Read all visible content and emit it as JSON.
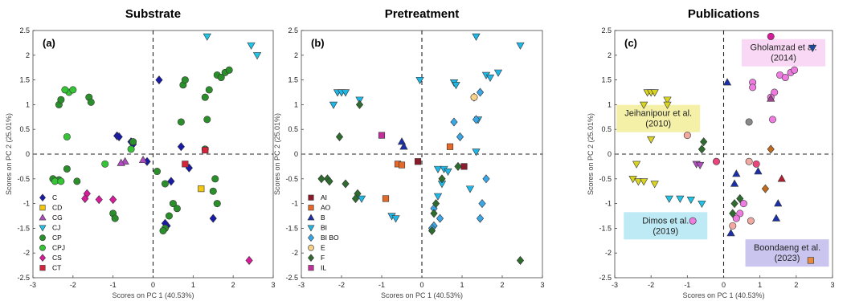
{
  "chart_data": [
    {
      "type": "scatter",
      "title": "Substrate",
      "panel_label": "(a)",
      "xlabel": "Scores on PC 1 (40.53%)",
      "ylabel": "Scores on PC 2 (25.01%)",
      "xlim": [
        -3,
        3
      ],
      "ylim": [
        -2.5,
        2.5
      ],
      "xticks": [
        "-3",
        "-2",
        "-1",
        "0",
        "1",
        "2",
        "3"
      ],
      "yticks": [
        "-2.5",
        "-2",
        "-1.5",
        "-1",
        "-0.5",
        "0",
        "0.5",
        "1",
        "1.5",
        "2",
        "2.5"
      ],
      "legend_position": "bottom-left",
      "series": [
        {
          "name": "C",
          "marker": "diamond",
          "color": "#1a1aa8",
          "points": [
            [
              -0.9,
              0.37
            ],
            [
              -0.85,
              0.35
            ],
            [
              -0.55,
              0.25
            ],
            [
              -0.5,
              0.2
            ],
            [
              0.15,
              1.5
            ],
            [
              0.7,
              0.15
            ],
            [
              -0.15,
              -0.15
            ],
            [
              0.9,
              -0.28
            ],
            [
              0.45,
              -0.55
            ],
            [
              0.35,
              -1.45
            ],
            [
              1.5,
              -1.3
            ],
            [
              0.3,
              -1.4
            ]
          ]
        },
        {
          "name": "CD",
          "marker": "square",
          "color": "#f2c80f",
          "points": [
            [
              1.2,
              -0.7
            ]
          ]
        },
        {
          "name": "CG",
          "marker": "triangle",
          "color": "#b04cc0",
          "points": [
            [
              -0.7,
              -0.15
            ],
            [
              -0.8,
              -0.18
            ],
            [
              -0.25,
              -0.12
            ]
          ]
        },
        {
          "name": "CJ",
          "marker": "triangle-down",
          "color": "#1fc4e6",
          "points": [
            [
              1.35,
              2.38
            ],
            [
              2.45,
              2.2
            ],
            [
              2.6,
              2.0
            ]
          ]
        },
        {
          "name": "CP",
          "marker": "circle",
          "color": "#2a8f2a",
          "points": [
            [
              -2.35,
              1.0
            ],
            [
              -2.3,
              1.1
            ],
            [
              -1.6,
              1.15
            ],
            [
              -1.55,
              1.05
            ],
            [
              0.7,
              0.65
            ],
            [
              0.75,
              1.4
            ],
            [
              0.8,
              1.5
            ],
            [
              1.3,
              1.15
            ],
            [
              1.4,
              1.3
            ],
            [
              1.6,
              1.6
            ],
            [
              1.7,
              1.55
            ],
            [
              1.8,
              1.65
            ],
            [
              1.9,
              1.7
            ],
            [
              1.35,
              0.7
            ],
            [
              1.3,
              0.1
            ],
            [
              -0.5,
              0.25
            ],
            [
              -2.15,
              -0.3
            ],
            [
              -2.5,
              -0.5
            ],
            [
              -2.35,
              -0.52
            ],
            [
              -1.9,
              -0.55
            ],
            [
              -1.0,
              -1.2
            ],
            [
              -0.95,
              -1.3
            ],
            [
              0.1,
              -0.35
            ],
            [
              0.3,
              -0.6
            ],
            [
              0.5,
              -1.0
            ],
            [
              0.6,
              -1.1
            ],
            [
              0.4,
              -1.25
            ],
            [
              0.3,
              -1.5
            ],
            [
              0.25,
              -1.55
            ],
            [
              1.5,
              -0.75
            ],
            [
              1.6,
              -1.0
            ],
            [
              1.55,
              -0.5
            ]
          ]
        },
        {
          "name": "CPJ",
          "marker": "circle",
          "color": "#35c435",
          "points": [
            [
              -2.1,
              1.25
            ],
            [
              -2.2,
              1.3
            ],
            [
              -2.0,
              1.3
            ],
            [
              -2.15,
              0.35
            ],
            [
              -1.2,
              -0.2
            ],
            [
              -0.55,
              0.1
            ],
            [
              -2.45,
              -0.55
            ],
            [
              -2.3,
              -0.55
            ]
          ]
        },
        {
          "name": "CS",
          "marker": "diamond",
          "color": "#d81b9a",
          "points": [
            [
              -1.65,
              -0.8
            ],
            [
              -1.7,
              -0.9
            ],
            [
              -1.35,
              -0.92
            ],
            [
              -1.0,
              -0.92
            ],
            [
              2.4,
              -2.15
            ]
          ]
        },
        {
          "name": "CT",
          "marker": "square",
          "color": "#d3243a",
          "points": [
            [
              0.8,
              -0.2
            ],
            [
              1.3,
              0.08
            ]
          ]
        }
      ]
    },
    {
      "type": "scatter",
      "title": "Pretreatment",
      "panel_label": "(b)",
      "xlabel": "Scores on PC 1 (40.53%)",
      "ylabel": "Scores on PC 2 (25.01%)",
      "xlim": [
        -3,
        3
      ],
      "ylim": [
        -2.5,
        2.5
      ],
      "xticks": [
        "-3",
        "-2",
        "-1",
        "0",
        "1",
        "2",
        "3"
      ],
      "yticks": [
        "-2.5",
        "-2",
        "-1.5",
        "-1",
        "-0.5",
        "0",
        "0.5",
        "1",
        "1.5",
        "2",
        "2.5"
      ],
      "legend_position": "bottom-left",
      "series": [
        {
          "name": "AI",
          "marker": "square",
          "color": "#8b1a2b",
          "points": [
            [
              -0.1,
              -0.15
            ],
            [
              1.05,
              -0.25
            ]
          ]
        },
        {
          "name": "AO",
          "marker": "square",
          "color": "#e36a2a",
          "points": [
            [
              -0.6,
              -0.2
            ],
            [
              -0.5,
              -0.22
            ],
            [
              0.7,
              0.15
            ],
            [
              -0.9,
              -0.9
            ]
          ]
        },
        {
          "name": "B",
          "marker": "triangle",
          "color": "#1a2fa8",
          "points": [
            [
              -0.5,
              0.25
            ],
            [
              -0.45,
              0.15
            ]
          ]
        },
        {
          "name": "BI",
          "marker": "triangle-down",
          "color": "#1fb7e6",
          "points": [
            [
              -2.2,
              1.0
            ],
            [
              -2.1,
              1.25
            ],
            [
              -2.0,
              1.25
            ],
            [
              -1.9,
              1.25
            ],
            [
              -1.55,
              1.1
            ],
            [
              -0.05,
              1.5
            ],
            [
              0.8,
              1.45
            ],
            [
              0.85,
              1.4
            ],
            [
              1.35,
              2.38
            ],
            [
              2.45,
              2.2
            ],
            [
              1.6,
              1.6
            ],
            [
              1.7,
              1.55
            ],
            [
              1.9,
              1.65
            ],
            [
              1.35,
              0.05
            ],
            [
              1.4,
              0.7
            ],
            [
              -1.5,
              -0.9
            ],
            [
              -0.75,
              -1.25
            ],
            [
              -0.65,
              -1.3
            ],
            [
              0.4,
              -0.3
            ],
            [
              0.55,
              -0.3
            ],
            [
              0.65,
              -0.35
            ],
            [
              0.5,
              -0.6
            ],
            [
              0.4,
              -0.85
            ],
            [
              1.2,
              -0.7
            ]
          ]
        },
        {
          "name": "BI BO",
          "marker": "diamond",
          "color": "#3aa6e6",
          "points": [
            [
              0.8,
              0.65
            ],
            [
              0.95,
              0.35
            ],
            [
              1.35,
              0.7
            ],
            [
              1.45,
              1.25
            ],
            [
              1.6,
              -0.5
            ],
            [
              1.5,
              -1.0
            ],
            [
              1.45,
              -1.3
            ],
            [
              0.3,
              -1.45
            ],
            [
              0.45,
              -1.3
            ],
            [
              0.3,
              -1.1
            ],
            [
              0.25,
              -1.5
            ],
            [
              1.3,
              1.15
            ]
          ]
        },
        {
          "name": "E",
          "marker": "circle",
          "color": "#f7d08a",
          "points": [
            [
              1.3,
              1.15
            ]
          ]
        },
        {
          "name": "F",
          "marker": "diamond",
          "color": "#2e6b2e",
          "points": [
            [
              -2.05,
              0.35
            ],
            [
              -1.55,
              1.0
            ],
            [
              -2.35,
              -0.5
            ],
            [
              -2.5,
              -0.5
            ],
            [
              -2.3,
              -0.55
            ],
            [
              -1.9,
              -0.6
            ],
            [
              -1.6,
              -0.8
            ],
            [
              -1.65,
              -0.9
            ],
            [
              0.9,
              -0.25
            ],
            [
              0.35,
              -1.0
            ],
            [
              0.3,
              -1.2
            ],
            [
              0.25,
              -1.55
            ],
            [
              0.5,
              -0.5
            ],
            [
              2.45,
              -2.15
            ]
          ]
        },
        {
          "name": "IL",
          "marker": "square",
          "color": "#c0309a",
          "points": [
            [
              -1.0,
              0.38
            ]
          ]
        }
      ]
    },
    {
      "type": "scatter",
      "title": "Publications",
      "panel_label": "(c)",
      "xlabel": "Scores on PC 1 (40.53%)",
      "ylabel": "Scores on PC 2 (25.01%)",
      "xlim": [
        -3,
        3
      ],
      "ylim": [
        -2.5,
        2.5
      ],
      "xticks": [
        "-3",
        "-2",
        "-1",
        "0",
        "1",
        "2",
        "3"
      ],
      "yticks": [
        "-2.5",
        "-2",
        "-1.5",
        "-1",
        "-0.5",
        "0",
        "0.5",
        "1",
        "1.5",
        "2",
        "2.5"
      ],
      "annotations": [
        {
          "text": "Gholamzad et al.\n(2014)",
          "x": 1.65,
          "y": 2.05,
          "bg": "#f8d8f4"
        },
        {
          "text": "Jeihanipour et al.\n(2010)",
          "x": -1.8,
          "y": 0.72,
          "bg": "#f5f0a8"
        },
        {
          "text": "Dimos et al.\n(2019)",
          "x": -1.6,
          "y": -1.45,
          "bg": "#bdeaf5"
        },
        {
          "text": "Boondaeng et al.\n(2023)",
          "x": 1.75,
          "y": -2.0,
          "bg": "#c9c5ef"
        }
      ],
      "series": [
        {
          "name": "",
          "marker": "triangle-down",
          "color": "#d8d420",
          "points": [
            [
              -2.2,
              1.0
            ],
            [
              -2.1,
              1.25
            ],
            [
              -2.0,
              1.25
            ],
            [
              -1.9,
              1.25
            ],
            [
              -1.55,
              1.1
            ],
            [
              -1.55,
              1.0
            ],
            [
              -2.0,
              0.3
            ],
            [
              -2.5,
              -0.5
            ],
            [
              -2.35,
              -0.55
            ],
            [
              -2.2,
              -0.55
            ],
            [
              -1.9,
              -0.6
            ],
            [
              -2.4,
              -0.2
            ]
          ]
        },
        {
          "name": "",
          "marker": "triangle-down",
          "color": "#1fc4e6",
          "points": [
            [
              -1.5,
              -0.9
            ],
            [
              -1.2,
              -0.9
            ],
            [
              -0.9,
              -0.92
            ],
            [
              -0.6,
              -1.0
            ]
          ]
        },
        {
          "name": "",
          "marker": "circle",
          "color": "#ee7ce0",
          "points": [
            [
              1.55,
              1.6
            ],
            [
              1.7,
              1.55
            ],
            [
              1.85,
              1.65
            ],
            [
              1.95,
              1.7
            ],
            [
              1.4,
              1.25
            ],
            [
              0.8,
              1.45
            ],
            [
              0.8,
              1.35
            ],
            [
              1.35,
              0.7
            ],
            [
              0.45,
              -1.2
            ],
            [
              0.35,
              -1.3
            ],
            [
              -0.85,
              -1.35
            ],
            [
              0.55,
              -1.0
            ],
            [
              1.3,
              1.15
            ]
          ]
        },
        {
          "name": "",
          "marker": "circle",
          "color": "#d81b9a",
          "points": [
            [
              1.3,
              2.38
            ]
          ]
        },
        {
          "name": "",
          "marker": "triangle-down",
          "color": "#1a4aa0",
          "points": [
            [
              2.45,
              2.15
            ]
          ]
        },
        {
          "name": "",
          "marker": "triangle",
          "color": "#1a2fa8",
          "points": [
            [
              0.1,
              1.45
            ],
            [
              0.3,
              -0.6
            ],
            [
              0.95,
              -0.35
            ],
            [
              0.35,
              -0.4
            ],
            [
              1.5,
              -1.0
            ],
            [
              1.45,
              -1.3
            ],
            [
              0.2,
              -1.6
            ]
          ]
        },
        {
          "name": "",
          "marker": "circle",
          "color": "#f0a8a0",
          "points": [
            [
              -1.0,
              0.38
            ],
            [
              0.7,
              -0.15
            ],
            [
              0.75,
              -1.35
            ],
            [
              0.25,
              -1.45
            ]
          ]
        },
        {
          "name": "",
          "marker": "diamond",
          "color": "#2e6b2e",
          "points": [
            [
              -0.55,
              0.25
            ],
            [
              -0.6,
              0.1
            ],
            [
              0.45,
              -0.9
            ],
            [
              0.3,
              -1.0
            ],
            [
              0.25,
              -1.2
            ]
          ]
        },
        {
          "name": "",
          "marker": "triangle-down",
          "color": "#b04cc0",
          "points": [
            [
              -0.75,
              -0.2
            ],
            [
              -0.65,
              -0.22
            ]
          ]
        },
        {
          "name": "",
          "marker": "circle",
          "color": "#e8457a",
          "points": [
            [
              -0.2,
              -0.15
            ],
            [
              0.9,
              -0.2
            ]
          ]
        },
        {
          "name": "",
          "marker": "circle",
          "color": "#888888",
          "points": [
            [
              0.7,
              0.65
            ]
          ]
        },
        {
          "name": "",
          "marker": "triangle",
          "color": "#a04090",
          "points": [
            [
              1.3,
              1.12
            ]
          ]
        },
        {
          "name": "",
          "marker": "diamond",
          "color": "#c06a20",
          "points": [
            [
              1.3,
              0.1
            ],
            [
              1.15,
              -0.7
            ]
          ]
        },
        {
          "name": "",
          "marker": "triangle",
          "color": "#b02030",
          "points": [
            [
              1.6,
              -0.5
            ]
          ]
        },
        {
          "name": "",
          "marker": "square",
          "color": "#e88a3a",
          "points": [
            [
              2.4,
              -2.15
            ]
          ]
        }
      ]
    }
  ]
}
